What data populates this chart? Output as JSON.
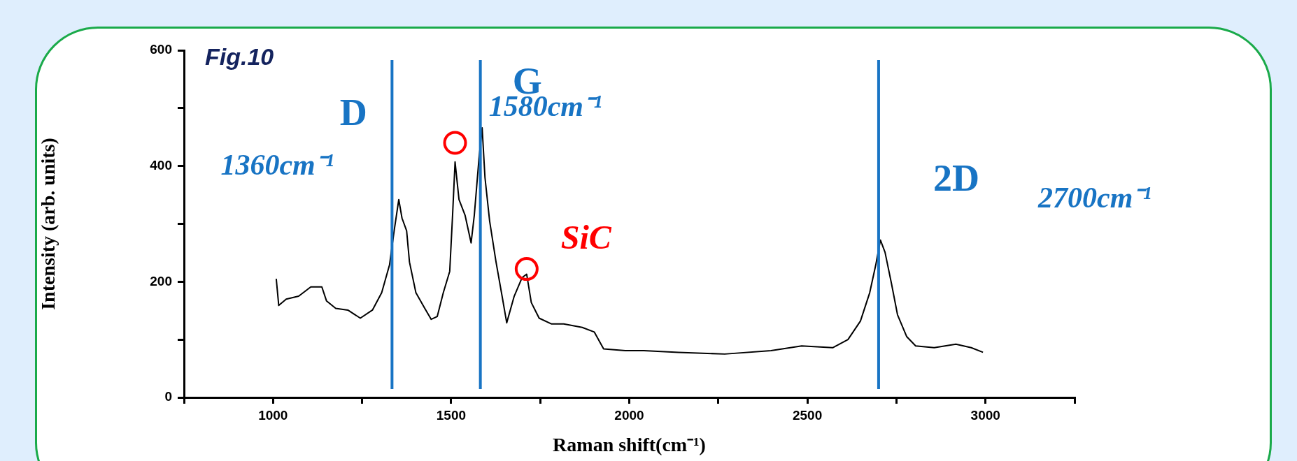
{
  "chart_data": {
    "type": "line",
    "title": "Fig.10",
    "xlabel": "Raman shift(cm⁻¹)",
    "ylabel": "Intensity (arb. units)",
    "xlim": [
      750,
      3250
    ],
    "xticks": [
      {
        "value": 750,
        "label": null
      },
      1000,
      {
        "value": 1250,
        "label": null
      },
      1500,
      {
        "value": 1750,
        "label": null
      },
      2000,
      {
        "value": 2250,
        "label": null
      },
      2500,
      {
        "value": 2750,
        "label": null
      },
      3000,
      {
        "value": 3250,
        "label": null
      }
    ],
    "ylim": [
      0,
      600
    ],
    "yticks": [
      0,
      {
        "value": 100,
        "label": null
      },
      200,
      {
        "value": 300,
        "label": null
      },
      400,
      {
        "value": 500,
        "label": null
      },
      600
    ],
    "grid": false,
    "legend": false,
    "marker": "none",
    "line_style": "solid",
    "series": [
      {
        "color": "#000000",
        "x": [
          1009,
          1016,
          1037,
          1072,
          1106,
          1137,
          1150,
          1176,
          1210,
          1245,
          1279,
          1305,
          1327,
          1340,
          1353,
          1362,
          1375,
          1383,
          1401,
          1426,
          1444,
          1461,
          1478,
          1496,
          1504,
          1511,
          1522,
          1539,
          1556,
          1565,
          1578,
          1587,
          1595,
          1608,
          1626,
          1643,
          1656,
          1677,
          1699,
          1712,
          1725,
          1747,
          1782,
          1816,
          1868,
          1902,
          1928,
          1989,
          2041,
          2138,
          2268,
          2398,
          2484,
          2571,
          2614,
          2649,
          2675,
          2692,
          2705,
          2718,
          2736,
          2753,
          2779,
          2804,
          2856,
          2917,
          2960,
          2993
        ],
        "values": [
          205,
          159,
          170,
          175,
          191,
          191,
          167,
          154,
          151,
          137,
          151,
          181,
          229,
          288,
          342,
          310,
          288,
          234,
          181,
          154,
          135,
          140,
          181,
          218,
          315,
          407,
          342,
          315,
          267,
          315,
          412,
          466,
          380,
          305,
          234,
          175,
          129,
          175,
          207,
          213,
          164,
          137,
          127,
          127,
          121,
          113,
          84,
          81,
          81,
          78,
          75,
          81,
          89,
          86,
          100,
          132,
          181,
          229,
          272,
          251,
          197,
          143,
          105,
          89,
          86,
          92,
          86,
          78
        ]
      },
      {
        "type": "scatter",
        "color": "#ff0000",
        "marker": "circle",
        "x": [
          1511,
          1712
        ],
        "values": [
          440,
          222
        ]
      }
    ],
    "ref_lines": [
      {
        "axis": "x",
        "value": 1334,
        "label": "D",
        "color": "#1874c4"
      },
      {
        "axis": "x",
        "value": 1582,
        "label": "G",
        "color": "#1874c4"
      },
      {
        "axis": "x",
        "value": 2700,
        "label": "2D",
        "color": "#1874c4"
      }
    ],
    "annotations": [
      "1360cm⁻¹",
      "1580cm⁻¹",
      "2700cm⁻¹",
      {
        "text": "SiC",
        "x": 1712,
        "y": 222
      }
    ]
  }
}
